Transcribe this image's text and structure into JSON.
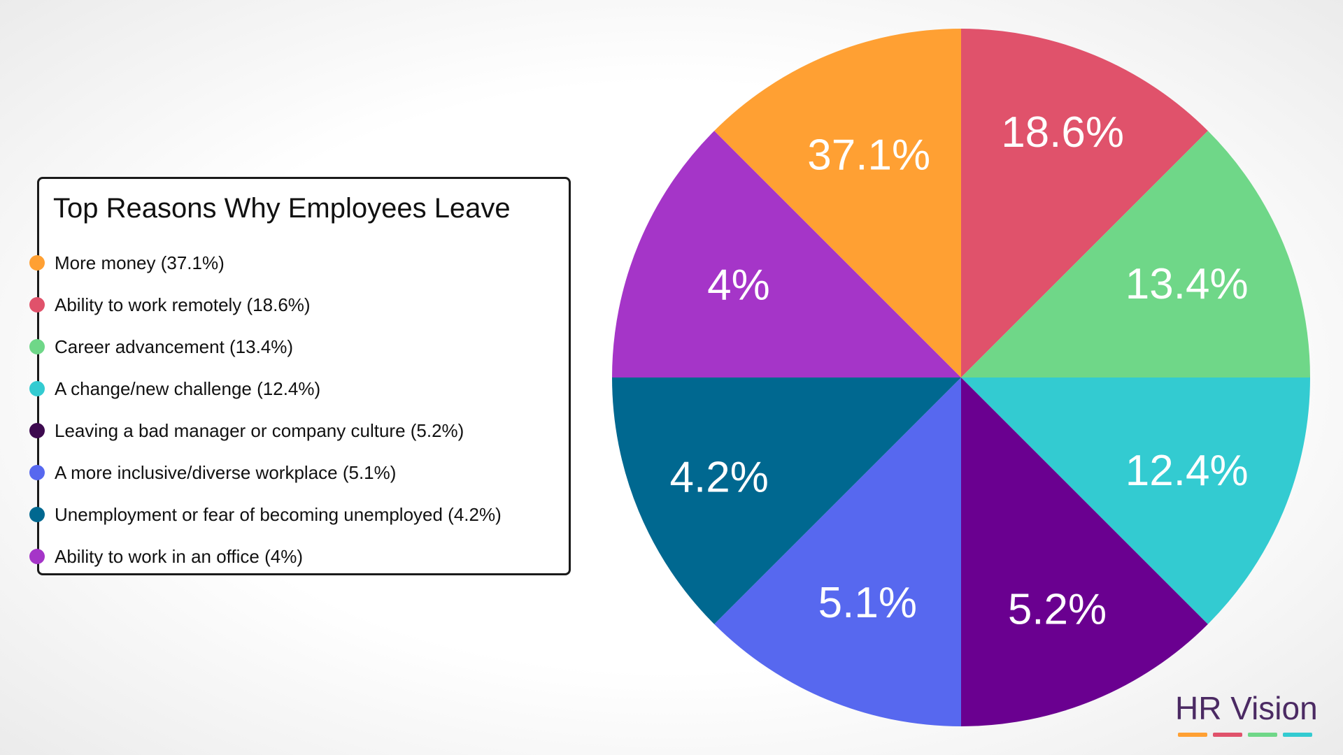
{
  "chart_data": {
    "type": "pie",
    "title": "Top Reasons Why Employees Leave",
    "slices": [
      {
        "label": "Ability to work remotely",
        "value": 18.6,
        "display": "18.6%",
        "legend": "Ability to work remotely (18.6%)",
        "color": "#e0526b"
      },
      {
        "label": "Career advancement",
        "value": 13.4,
        "display": "13.4%",
        "legend": "Career advancement (13.4%)",
        "color": "#6fd788"
      },
      {
        "label": "A change/new challenge",
        "value": 12.4,
        "display": "12.4%",
        "legend": "A change/new challenge (12.4%)",
        "color": "#33cbd1"
      },
      {
        "label": "Leaving a bad manager or company culture",
        "value": 5.2,
        "display": "5.2%",
        "legend": "Leaving a bad manager or company culture (5.2%)",
        "color": "#6a0090"
      },
      {
        "label": "A more inclusive/diverse workplace",
        "value": 5.1,
        "display": "5.1%",
        "legend": "A more inclusive/diverse workplace (5.1%)",
        "color": "#5768ef"
      },
      {
        "label": "Unemployment or fear of becoming unemployed",
        "value": 4.2,
        "display": "4.2%",
        "legend": "Unemployment or fear of becoming unemployed (4.2%)",
        "color": "#006890"
      },
      {
        "label": "Ability to work in an office",
        "value": 4,
        "display": "4%",
        "legend": "Ability to work in an office (4%)",
        "color": "#a535c8"
      },
      {
        "label": "More money",
        "value": 37.1,
        "display": "37.1%",
        "legend": "More money (37.1%)",
        "color": "#ffa033"
      }
    ],
    "legend_order": [
      "More money (37.1%)",
      "Ability to work remotely (18.6%)",
      "Career advancement (13.4%)",
      "A change/new challenge (12.4%)",
      "Leaving a bad manager or company culture (5.2%)",
      "A more inclusive/diverse workplace (5.1%)",
      "Unemployment or fear of becoming unemployed (4.2%)",
      "Ability to work in an office (4%)"
    ],
    "legend_colors": [
      "#ffa033",
      "#e0526b",
      "#6fd788",
      "#33cbd1",
      "#3d0a4f",
      "#5768ef",
      "#006890",
      "#a535c8"
    ],
    "legend_position": "left"
  },
  "brand": {
    "name": "HR Vision",
    "bar_colors": [
      "#ffa033",
      "#e0526b",
      "#6fd788",
      "#33cbd1"
    ]
  }
}
